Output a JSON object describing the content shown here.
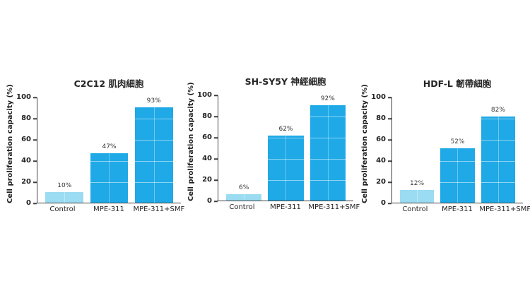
{
  "figure": {
    "background": "#ffffff",
    "shared_ylabel": "Cell proliferation capacity (%)"
  },
  "colors": {
    "bar_control": "#9bdcf2",
    "bar_treatment": "#1fa9e6",
    "axis": "#3f3f3f",
    "text": "#2b2b2b"
  },
  "chart_data": [
    {
      "type": "bar",
      "title": "C2C12 肌肉細胞",
      "ylabel": "Cell proliferation capacity (%)",
      "categories": [
        "Control",
        "MPE-311",
        "MPE-311+SMF"
      ],
      "values": [
        10,
        47,
        93
      ],
      "value_labels": [
        "10%",
        "47%",
        "93%"
      ],
      "ylim": [
        0,
        100
      ],
      "yticks": [
        0,
        20,
        40,
        60,
        80,
        100
      ],
      "bar_colors": [
        "#9bdcf2",
        "#1fa9e6",
        "#1fa9e6"
      ],
      "legend": "none",
      "grid": "faint light gridlines visible over bars at 20/40/60/80"
    },
    {
      "type": "bar",
      "title": "SH-SY5Y 神經細胞",
      "ylabel": "Cell proliferation capacity (%)",
      "categories": [
        "Control",
        "MPE-311",
        "MPE-311+SMF"
      ],
      "values": [
        6,
        62,
        92
      ],
      "value_labels": [
        "6%",
        "62%",
        "92%"
      ],
      "ylim": [
        0,
        100
      ],
      "yticks": [
        0,
        20,
        40,
        60,
        80,
        100
      ],
      "bar_colors": [
        "#9bdcf2",
        "#1fa9e6",
        "#1fa9e6"
      ],
      "legend": "none",
      "grid": "faint light gridlines visible over bars at 20/40/60/80"
    },
    {
      "type": "bar",
      "title": "HDF-L 韌帶細胞",
      "ylabel": "Cell proliferation capacity (%)",
      "categories": [
        "Control",
        "MPE-311",
        "MPE-311+SMF"
      ],
      "values": [
        12,
        52,
        82
      ],
      "value_labels": [
        "12%",
        "52%",
        "82%"
      ],
      "ylim": [
        0,
        100
      ],
      "yticks": [
        0,
        20,
        40,
        60,
        80,
        100
      ],
      "bar_colors": [
        "#9bdcf2",
        "#1fa9e6",
        "#1fa9e6"
      ],
      "legend": "none",
      "grid": "faint light gridlines visible over bars at 20/40/60/80"
    }
  ]
}
